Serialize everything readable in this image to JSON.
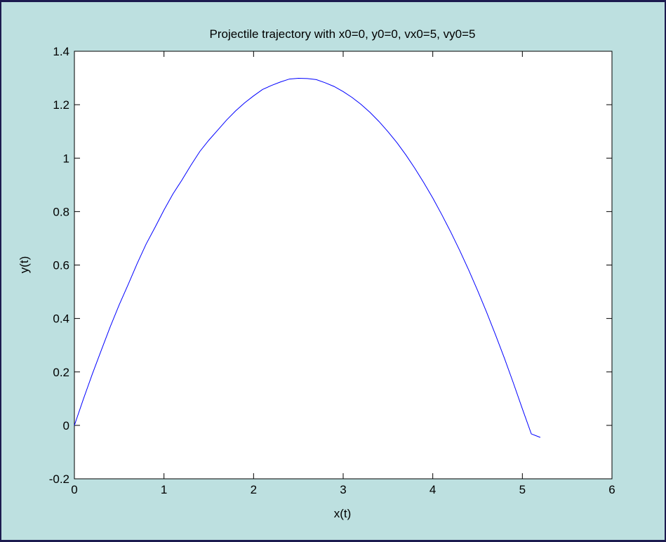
{
  "colors": {
    "figure_background": "#bde0e0",
    "window_border": "#1c1b4f",
    "axes_background": "#ffffff",
    "line_color": "#0000ff"
  },
  "chart_data": {
    "type": "line",
    "title": "Projectile trajectory with x0=0, y0=0, vx0=5, vy0=5",
    "xlabel": "x(t)",
    "ylabel": "y(t)",
    "xlim": [
      0,
      6
    ],
    "ylim": [
      -0.2,
      1.4
    ],
    "xticks": [
      0,
      1,
      2,
      3,
      4,
      5,
      6
    ],
    "xtick_labels": [
      "0",
      "1",
      "2",
      "3",
      "4",
      "5",
      "6"
    ],
    "yticks": [
      -0.2,
      0,
      0.2,
      0.4,
      0.6,
      0.8,
      1,
      1.2,
      1.4
    ],
    "ytick_labels": [
      "-0.2",
      "0",
      "0.2",
      "0.4",
      "0.6",
      "0.8",
      "1",
      "1.2",
      "1.4"
    ],
    "grid": false,
    "legend": "none",
    "series": [
      {
        "color": "#0000ff",
        "x": [
          0,
          0.1,
          0.2,
          0.3,
          0.4,
          0.5,
          0.6,
          0.7,
          0.8,
          0.9,
          1.0,
          1.1,
          1.2,
          1.3,
          1.4,
          1.5,
          1.6,
          1.7,
          1.8,
          1.9,
          2.0,
          2.1,
          2.2,
          2.3,
          2.4,
          2.5,
          2.6,
          2.7,
          2.8,
          2.9,
          3.0,
          3.1,
          3.2,
          3.3,
          3.4,
          3.5,
          3.6,
          3.7,
          3.8,
          3.9,
          4.0,
          4.1,
          4.2,
          4.3,
          4.4,
          4.5,
          4.6,
          4.7,
          4.8,
          4.9,
          5.0,
          5.1,
          5.2
        ],
        "y": [
          0,
          0.098,
          0.192,
          0.281,
          0.369,
          0.451,
          0.527,
          0.605,
          0.678,
          0.741,
          0.806,
          0.866,
          0.918,
          0.973,
          1.025,
          1.067,
          1.105,
          1.143,
          1.177,
          1.207,
          1.233,
          1.257,
          1.272,
          1.285,
          1.296,
          1.299,
          1.298,
          1.294,
          1.282,
          1.268,
          1.249,
          1.227,
          1.201,
          1.171,
          1.137,
          1.099,
          1.058,
          1.012,
          0.962,
          0.908,
          0.851,
          0.789,
          0.724,
          0.655,
          0.582,
          0.505,
          0.424,
          0.339,
          0.251,
          0.158,
          0.062,
          -0.032,
          -0.045
        ]
      }
    ]
  }
}
